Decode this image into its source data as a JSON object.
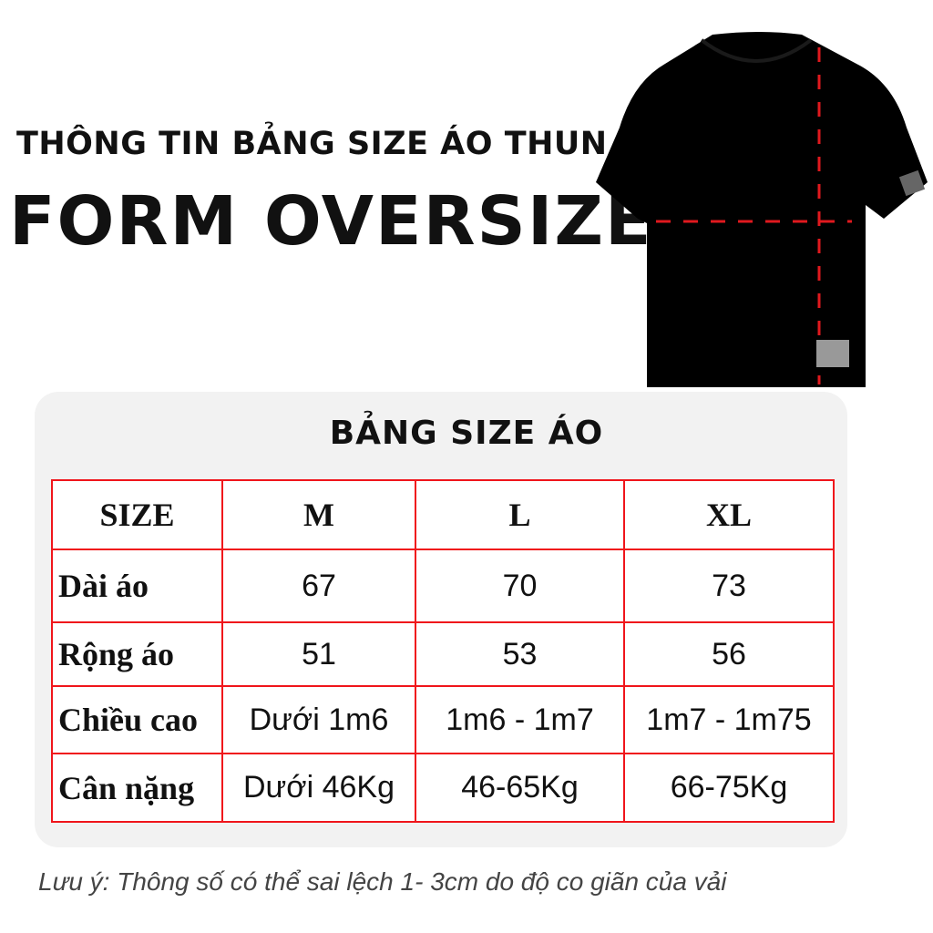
{
  "header": {
    "line1": "THÔNG TIN BẢNG SIZE ÁO THUN",
    "line2": "FORM OVERSIZE"
  },
  "shirt": {
    "color": "#000000",
    "measure_line_color": "#e0191e"
  },
  "size_table": {
    "title": "BẢNG SIZE ÁO",
    "border_color": "#f0151b",
    "headers": [
      "SIZE",
      "M",
      "L",
      "XL"
    ],
    "rows": [
      {
        "label": "Dài áo",
        "values": [
          "67",
          "70",
          "73"
        ]
      },
      {
        "label": "Rộng áo",
        "values": [
          "51",
          "53",
          "56"
        ]
      },
      {
        "label": "Chiều cao",
        "values": [
          "Dưới 1m6",
          "1m6 - 1m7",
          "1m7 - 1m75"
        ]
      },
      {
        "label": "Cân nặng",
        "values": [
          "Dưới 46Kg",
          "46-65Kg",
          "66-75Kg"
        ]
      }
    ]
  },
  "note": "Lưu ý: Thông số có thể sai lệch 1- 3cm do độ co giãn của vải"
}
